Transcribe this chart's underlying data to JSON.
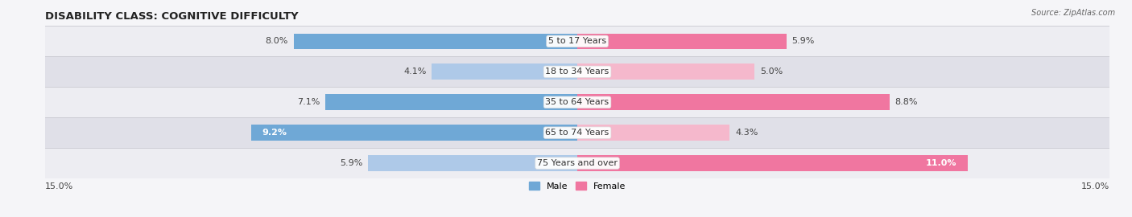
{
  "title": "DISABILITY CLASS: COGNITIVE DIFFICULTY",
  "source": "Source: ZipAtlas.com",
  "categories": [
    "5 to 17 Years",
    "18 to 34 Years",
    "35 to 64 Years",
    "65 to 74 Years",
    "75 Years and over"
  ],
  "male_values": [
    8.0,
    4.1,
    7.1,
    9.2,
    5.9
  ],
  "female_values": [
    5.9,
    5.0,
    8.8,
    4.3,
    11.0
  ],
  "male_label_white": [
    false,
    false,
    false,
    true,
    false
  ],
  "female_label_white": [
    false,
    false,
    false,
    false,
    true
  ],
  "max_val": 15.0,
  "male_color_strong": "#6fa8d6",
  "male_color_light": "#aec9e8",
  "female_color_strong": "#f076a0",
  "female_color_light": "#f5b8cc",
  "row_bg_odd": "#ededf2",
  "row_bg_even": "#e0e0e8",
  "fig_bg": "#f5f5f8",
  "label_fontsize": 8.0,
  "title_fontsize": 9.5,
  "bar_height": 0.52,
  "legend_labels": [
    "Male",
    "Female"
  ]
}
